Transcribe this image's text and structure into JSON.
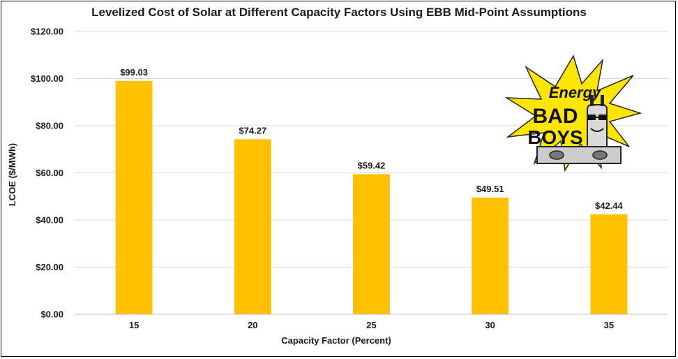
{
  "chart_data": {
    "type": "bar",
    "title": "Levelized Cost of Solar at Different Capacity Factors Using EBB Mid-Point Assumptions",
    "xlabel": "Capacity Factor (Percent)",
    "ylabel": "LCOE ($/MWh)",
    "categories": [
      "15",
      "20",
      "25",
      "30",
      "35"
    ],
    "values": [
      99.03,
      74.27,
      59.42,
      49.51,
      42.44
    ],
    "data_labels": [
      "$99.03",
      "$74.27",
      "$59.42",
      "$49.51",
      "$42.44"
    ],
    "ylim": [
      0,
      120
    ],
    "yticks": [
      0,
      20,
      40,
      60,
      80,
      100,
      120
    ],
    "ytick_labels": [
      "$0.00",
      "$20.00",
      "$40.00",
      "$60.00",
      "$80.00",
      "$100.00",
      "$120.00"
    ],
    "grid": true,
    "legend": "none",
    "bar_color": "#FFC000",
    "grid_color": "#D9D9D9"
  },
  "logo": {
    "line1": "Energy",
    "line2": "BAD",
    "line3": "BOYS",
    "burst_color": "#FFE600"
  }
}
